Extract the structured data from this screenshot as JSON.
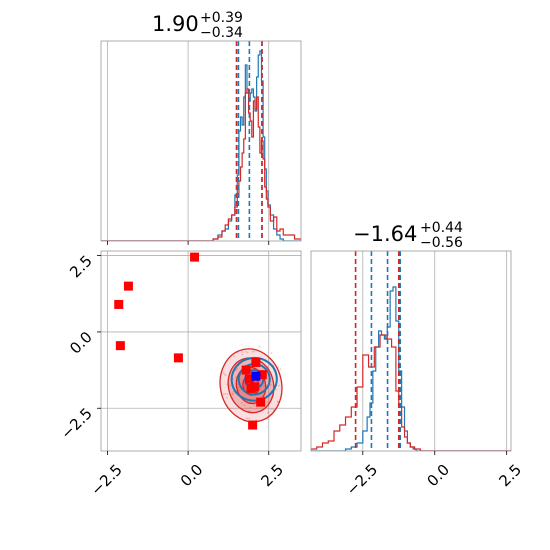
{
  "chart_data": [
    {
      "panel": "top-left",
      "type": "histogram",
      "title": {
        "value": "1.90",
        "plus": "+0.39",
        "minus": "−0.34"
      },
      "xlim": [
        -2.7,
        3.5
      ],
      "grid": true,
      "series": [
        {
          "name": "",
          "color": "#1f77b4",
          "x": [
            0.85,
            1.0,
            1.1,
            1.2,
            1.3,
            1.4,
            1.5,
            1.55,
            1.6,
            1.65,
            1.7,
            1.75,
            1.8,
            1.85,
            1.9,
            1.95,
            2.0,
            2.05,
            2.1,
            2.15,
            2.2,
            2.25,
            2.3,
            2.35,
            2.4,
            2.45,
            2.5,
            2.6,
            2.7,
            2.8,
            2.9
          ],
          "y": [
            0.01,
            0.03,
            0.05,
            0.06,
            0.1,
            0.13,
            0.23,
            0.33,
            0.55,
            0.62,
            0.58,
            0.72,
            0.88,
            0.74,
            0.7,
            0.74,
            0.76,
            0.72,
            0.65,
            0.82,
            0.93,
            0.95,
            0.8,
            0.52,
            0.36,
            0.25,
            0.18,
            0.13,
            0.06,
            0.03,
            0.01
          ]
        },
        {
          "name": "",
          "color": "#d62728",
          "x": [
            0.85,
            1.0,
            1.1,
            1.2,
            1.3,
            1.4,
            1.5,
            1.55,
            1.6,
            1.65,
            1.7,
            1.75,
            1.8,
            1.85,
            1.9,
            1.95,
            2.0,
            2.05,
            2.1,
            2.15,
            2.2,
            2.25,
            2.3,
            2.35,
            2.4,
            2.45,
            2.5,
            2.6,
            2.7,
            2.8,
            2.9,
            3.0,
            3.2,
            3.4
          ],
          "y": [
            0.01,
            0.02,
            0.05,
            0.08,
            0.11,
            0.13,
            0.17,
            0.22,
            0.3,
            0.37,
            0.44,
            0.51,
            0.74,
            0.76,
            0.64,
            0.6,
            0.52,
            0.7,
            0.66,
            0.72,
            0.57,
            0.44,
            0.5,
            0.41,
            0.27,
            0.21,
            0.17,
            0.1,
            0.12,
            0.05,
            0.06,
            0.03,
            0.03,
            0.01
          ]
        }
      ],
      "quantile_lines": [
        {
          "color": "#1f77b4",
          "x": [
            1.56,
            1.9,
            2.29
          ]
        },
        {
          "color": "#d62728",
          "x": [
            1.5,
            2.29
          ]
        }
      ]
    },
    {
      "panel": "bottom-left",
      "type": "scatter",
      "xlim": [
        -2.7,
        3.5
      ],
      "ylim": [
        -3.9,
        2.65
      ],
      "xticks": [
        "−2.5",
        "0.0",
        "2.5"
      ],
      "yticks": [
        "2.5",
        "0.0",
        "−2.5"
      ],
      "grid": true,
      "contours": [
        {
          "color": "#d62728",
          "center": [
            1.95,
            -1.75
          ],
          "radii": [
            [
              0.95,
              1.2
            ],
            [
              0.7,
              0.9
            ],
            [
              0.45,
              0.6
            ],
            [
              0.25,
              0.32
            ]
          ]
        },
        {
          "color": "#1f77b4",
          "center": [
            2.05,
            -1.55
          ],
          "radii": [
            [
              0.7,
              0.7
            ],
            [
              0.48,
              0.5
            ],
            [
              0.28,
              0.3
            ]
          ]
        }
      ],
      "markers": [
        {
          "x": 0.2,
          "y": 2.45,
          "color": "#ff0000"
        },
        {
          "x": -1.85,
          "y": 1.5,
          "color": "#ff0000"
        },
        {
          "x": -2.15,
          "y": 0.9,
          "color": "#ff0000"
        },
        {
          "x": -2.1,
          "y": -0.45,
          "color": "#ff0000"
        },
        {
          "x": -0.3,
          "y": -0.85,
          "color": "#ff0000"
        },
        {
          "x": 2.1,
          "y": -1.0,
          "color": "#ff0000"
        },
        {
          "x": 1.8,
          "y": -1.25,
          "color": "#ff0000"
        },
        {
          "x": 2.3,
          "y": -1.4,
          "color": "#ff0000"
        },
        {
          "x": 1.9,
          "y": -1.55,
          "color": "#ff0000"
        },
        {
          "x": 1.95,
          "y": -1.85,
          "color": "#ff0000"
        },
        {
          "x": 2.05,
          "y": -1.8,
          "color": "#ff0000"
        },
        {
          "x": 2.25,
          "y": -2.3,
          "color": "#ff0000"
        },
        {
          "x": 2.0,
          "y": -3.05,
          "color": "#ff0000"
        },
        {
          "x": 2.1,
          "y": -1.45,
          "color": "#0000ff"
        }
      ]
    },
    {
      "panel": "bottom-right",
      "type": "histogram",
      "title": {
        "value": "−1.64",
        "plus": "+0.44",
        "minus": "−0.56"
      },
      "xlim": [
        -4.3,
        2.65
      ],
      "xticks": [
        "−2.5",
        "0.0",
        "2.5"
      ],
      "grid": true,
      "series": [
        {
          "name": "",
          "color": "#1f77b4",
          "x": [
            -3.0,
            -2.8,
            -2.6,
            -2.4,
            -2.3,
            -2.2,
            -2.1,
            -2.0,
            -1.9,
            -1.8,
            -1.7,
            -1.6,
            -1.5,
            -1.4,
            -1.3,
            -1.2,
            -1.1,
            -1.0,
            -0.9,
            -0.8,
            -0.7
          ],
          "y": [
            0.01,
            0.02,
            0.04,
            0.1,
            0.17,
            0.24,
            0.4,
            0.52,
            0.6,
            0.58,
            0.56,
            0.62,
            0.8,
            0.82,
            0.65,
            0.4,
            0.22,
            0.1,
            0.04,
            0.02,
            0.01
          ]
        },
        {
          "name": "",
          "color": "#d62728",
          "x": [
            -4.2,
            -4.0,
            -3.8,
            -3.6,
            -3.4,
            -3.2,
            -3.0,
            -2.8,
            -2.6,
            -2.4,
            -2.2,
            -2.0,
            -1.8,
            -1.6,
            -1.4,
            -1.3,
            -1.2,
            -1.1,
            -1.0,
            -0.9,
            -0.8,
            -0.6
          ],
          "y": [
            0.01,
            0.02,
            0.04,
            0.05,
            0.1,
            0.13,
            0.17,
            0.22,
            0.32,
            0.48,
            0.42,
            0.52,
            0.58,
            0.56,
            0.52,
            0.3,
            0.22,
            0.12,
            0.07,
            0.04,
            0.02,
            0.01
          ]
        }
      ],
      "quantile_lines": [
        {
          "color": "#1f77b4",
          "x": [
            -2.2,
            -1.64,
            -1.2
          ]
        },
        {
          "color": "#d62728",
          "x": [
            -2.75,
            -1.25
          ]
        }
      ]
    }
  ]
}
